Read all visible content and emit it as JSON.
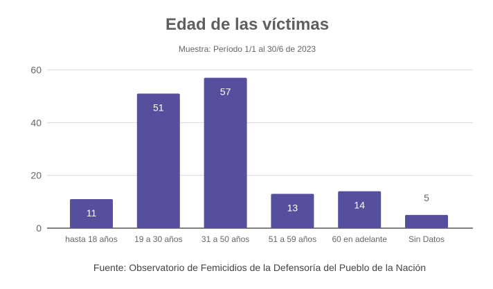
{
  "chart_data": {
    "type": "bar",
    "title": "Edad de las víctimas",
    "subtitle": "Muestra: Período 1/1 al 30/6 de 2023",
    "categories": [
      "hasta 18 años",
      "19 a 30 años",
      "31 a 50 años",
      "51 a 59 años",
      "60 en adelante",
      "Sin Datos"
    ],
    "values": [
      11,
      51,
      57,
      13,
      14,
      5
    ],
    "xlabel": "",
    "ylabel": "",
    "ylim": [
      0,
      60
    ],
    "yticks": [
      0,
      20,
      40,
      60
    ],
    "grid": true,
    "legend": "none",
    "source": "Fuente: Observatorio de Femicidios de la Defensoría del Pueblo de la Nación",
    "colors": {
      "bar": "#554f9e",
      "title": "#5f5f5f",
      "text": "#666666",
      "grid": "#d9d9d9",
      "axis": "#555555"
    }
  }
}
